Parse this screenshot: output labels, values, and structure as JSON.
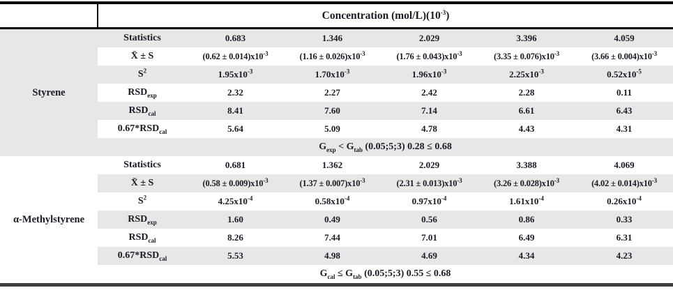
{
  "table": {
    "header": {
      "corner": "",
      "concentration": "Concentration (mol/L)(10^{-3})"
    },
    "groups": [
      {
        "name": "Styrene",
        "rows": [
          {
            "label": "Statistics",
            "values": [
              "0.683",
              "1.346",
              "2.029",
              "3.396",
              "4.059"
            ]
          },
          {
            "label": "X̄ ± S",
            "values": [
              "(0.62 ± 0.014)x10^{-3}",
              "(1.16 ± 0.026)x10^{-3}",
              "(1.76 ± 0.043)x10^{-3}",
              "(3.35 ± 0.076)x10^{-3}",
              "(3.66 ± 0.004)x10^{-3}"
            ]
          },
          {
            "label": "S^{2}",
            "values": [
              "1.95x10^{-3}",
              "1.70x10^{-3}",
              "1.96x10^{-3}",
              "2.25x10^{-3}",
              "0.52x10^{-5}"
            ]
          },
          {
            "label": "RSD_{exp}",
            "values": [
              "2.32",
              "2.27",
              "2.42",
              "2.28",
              "0.11"
            ]
          },
          {
            "label": "RSD_{cal}",
            "values": [
              "8.41",
              "7.60",
              "7.14",
              "6.61",
              "6.43"
            ]
          },
          {
            "label": "0.67*RSD_{cal}",
            "values": [
              "5.64",
              "5.09",
              "4.78",
              "4.43",
              "4.31"
            ]
          }
        ],
        "g_test": "G_{exp} < G_{tab}  (0.05;5;3) 0.28 ≤ 0.68"
      },
      {
        "name": "α-Methylstyrene",
        "rows": [
          {
            "label": "Statistics",
            "values": [
              "0.681",
              "1.362",
              "2.029",
              "3.388",
              "4.069"
            ]
          },
          {
            "label": "X̄ ± S",
            "values": [
              "(0.58 ± 0.009)x10^{-3}",
              "(1.37 ± 0.007)x10^{-3}",
              "(2.31 ± 0.013)x10^{-3}",
              "(3.26 ± 0.028)x10^{-3}",
              "(4.02 ± 0.014)x10^{-3}"
            ]
          },
          {
            "label": "S^{2}",
            "values": [
              "4.25x10^{-4}",
              "0.58x10^{-4}",
              "0.97x10^{-4}",
              "1.61x10^{-4}",
              "0.26x10^{-4}"
            ]
          },
          {
            "label": "RSD_{exp}",
            "values": [
              "1.60",
              "0.49",
              "0.56",
              "0.86",
              "0.33"
            ]
          },
          {
            "label": "RSD_{cal}",
            "values": [
              "8.26",
              "7.44",
              "7.01",
              "6.49",
              "6.31"
            ]
          },
          {
            "label": "0.67*RSD_{cal}",
            "values": [
              "5.53",
              "4.98",
              "4.69",
              "4.34",
              "4.23"
            ]
          }
        ],
        "g_test": "G_{cal} ≤ G_{tab} (0.05;5;3) 0.55 ≤ 0.68"
      }
    ]
  }
}
